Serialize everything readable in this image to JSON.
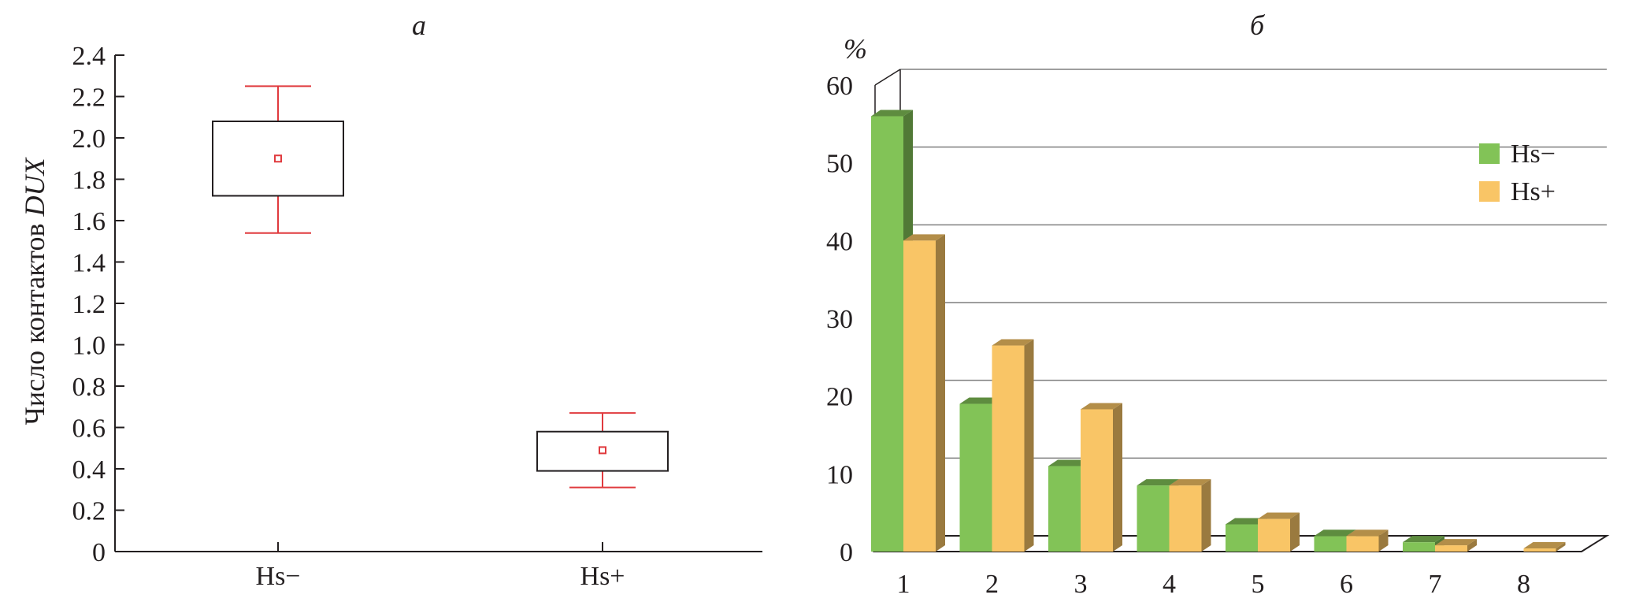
{
  "chart_data": [
    {
      "type": "box",
      "title": "а",
      "ylabel_main": "Число контактов ",
      "ylabel_italic": "DUX",
      "categories": [
        "Hs−",
        "Hs+"
      ],
      "ylim": [
        0,
        2.4
      ],
      "yticks": [
        "0",
        "0.2",
        "0.4",
        "0.6",
        "0.8",
        "1.0",
        "1.2",
        "1.4",
        "1.6",
        "1.8",
        "2.0",
        "2.2",
        "2.4"
      ],
      "boxes": [
        {
          "category": "Hs−",
          "whisker_low": 1.54,
          "q1": 1.72,
          "mean": 1.9,
          "q3": 2.08,
          "whisker_high": 2.25
        },
        {
          "category": "Hs+",
          "whisker_low": 0.31,
          "q1": 0.39,
          "mean": 0.49,
          "q3": 0.58,
          "whisker_high": 0.67
        }
      ],
      "colors": {
        "box": "#231f20",
        "whisker": "#e03a3e",
        "mean": "#e03a3e"
      }
    },
    {
      "type": "bar",
      "title": "б",
      "unit": "%",
      "categories": [
        "1",
        "2",
        "3",
        "4",
        "5",
        "6",
        "7",
        "8"
      ],
      "ylim": [
        0,
        60
      ],
      "yticks": [
        "0",
        "10",
        "20",
        "30",
        "40",
        "50",
        "60"
      ],
      "grid": true,
      "legend_position": "top-right",
      "series": [
        {
          "name": "Hs−",
          "color": "#82c357",
          "values": [
            56,
            19,
            11,
            8.5,
            3.5,
            2,
            1.2,
            0
          ]
        },
        {
          "name": "Hs+",
          "color": "#f9c566",
          "values": [
            40,
            26.5,
            18.3,
            8.5,
            4.2,
            2,
            0.8,
            0.4
          ]
        }
      ]
    }
  ]
}
